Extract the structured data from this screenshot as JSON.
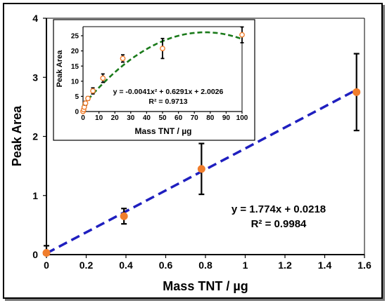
{
  "chart_data": [
    {
      "type": "scatter",
      "xlabel": "Mass TNT / µg",
      "ylabel": "Peak Area",
      "xlim": [
        0,
        1.6
      ],
      "ylim": [
        0,
        4
      ],
      "x_ticks": [
        "0",
        "0.2",
        "0.4",
        "0.6",
        "0.8",
        "1",
        "1.2",
        "1.4",
        "1.6"
      ],
      "y_ticks": [
        "0",
        "1",
        "2",
        "3",
        "4"
      ],
      "grid": false,
      "series": [
        {
          "x": [
            0,
            0.39,
            0.78,
            1.56
          ],
          "y": [
            0.03,
            0.65,
            1.45,
            2.75
          ],
          "error": [
            0.12,
            0.13,
            0.43,
            0.65
          ],
          "marker": "filled-circle",
          "color": "#f07d2c"
        }
      ],
      "fit": {
        "kind": "linear",
        "slope": 1.774,
        "intercept": 0.0218,
        "color": "#1f1fbf",
        "style": "dashed"
      },
      "equation": "y = 1.774x + 0.0218",
      "r2": "R² = 0.9984"
    },
    {
      "type": "scatter",
      "placement": "inset",
      "xlabel": "Mass TNT / µg",
      "ylabel": "Peak Area",
      "xlim": [
        0,
        100
      ],
      "ylim": [
        0,
        28
      ],
      "x_ticks": [
        "0",
        "10",
        "20",
        "30",
        "40",
        "50",
        "60",
        "70",
        "80",
        "90",
        "100"
      ],
      "y_ticks": [
        "0",
        "5",
        "10",
        "15",
        "20",
        "25"
      ],
      "grid": false,
      "series": [
        {
          "x": [
            0,
            0.39,
            0.78,
            1.56,
            3.1,
            6.2,
            12.5,
            25,
            50,
            100
          ],
          "y": [
            0.03,
            0.65,
            1.45,
            2.75,
            4.3,
            6.8,
            11,
            17.5,
            20.8,
            25.3
          ],
          "error": [
            0.12,
            0.13,
            0.43,
            0.65,
            0.6,
            1.0,
            1.4,
            1.2,
            3.3,
            2.6
          ],
          "marker": "open-circle",
          "color": "#f07d2c"
        }
      ],
      "fit": {
        "kind": "quadratic",
        "a": -0.0041,
        "b": 0.6291,
        "c": 2.0026,
        "color": "#1a7a1a",
        "style": "dashed"
      },
      "equation": "y = -0.0041x² + 0.6291x + 2.0026",
      "r2": "R² = 0.9713"
    }
  ]
}
